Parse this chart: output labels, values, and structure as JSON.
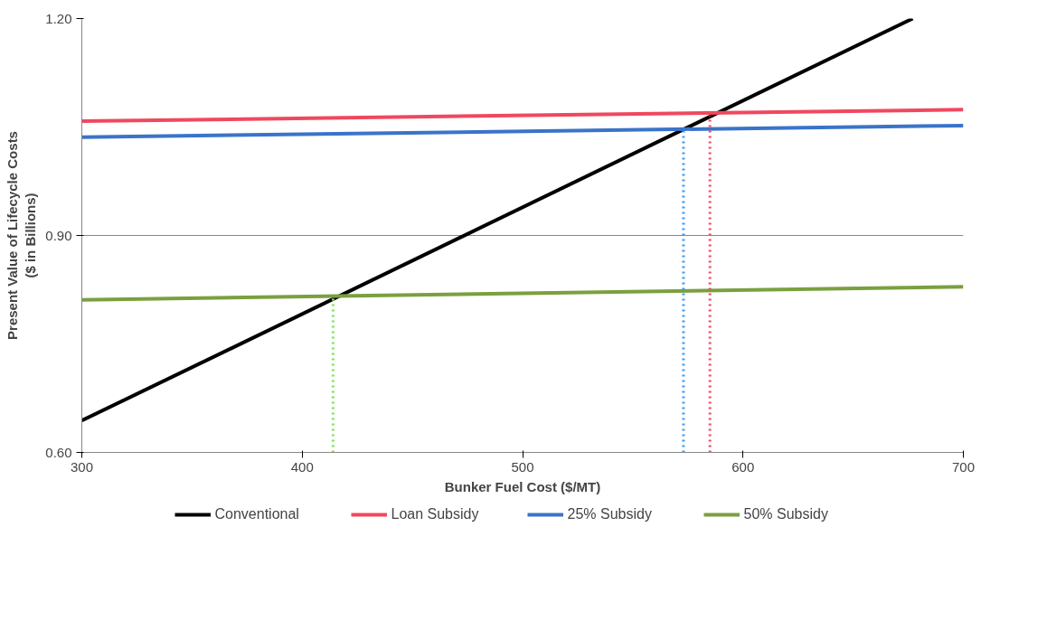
{
  "chart_data": {
    "type": "line",
    "xlabel": "Bunker Fuel Cost ($/MT)",
    "ylabel": "Present Value of Lifecycle Costs\n($ in Billions)",
    "xlim": [
      300,
      700
    ],
    "ylim": [
      0.6,
      1.2
    ],
    "xticks": [
      300,
      400,
      500,
      600,
      700
    ],
    "yticks": [
      {
        "value": 0.6,
        "label": "0.60"
      },
      {
        "value": 0.9,
        "label": "0.90"
      },
      {
        "value": 1.2,
        "label": "1.20"
      }
    ],
    "grid": "y",
    "legend": "bottom",
    "line_style": "solid",
    "marker": "none",
    "series": [
      {
        "name": "Conventional",
        "color": "#000000",
        "x": [
          300,
          677
        ],
        "values": [
          0.644,
          1.2
        ]
      },
      {
        "name": "Loan Subsidy",
        "color": "#f0485f",
        "x": [
          300,
          700
        ],
        "values": [
          1.058,
          1.074
        ]
      },
      {
        "name": "25% Subsidy",
        "color": "#3a74c9",
        "x": [
          300,
          700
        ],
        "values": [
          1.036,
          1.052
        ]
      },
      {
        "name": "50% Subsidy",
        "color": "#7aa03f",
        "x": [
          300,
          700
        ],
        "values": [
          0.811,
          0.829
        ]
      },
      {
        "color": "#7ee05a",
        "x": [
          414,
          414
        ],
        "values": [
          0.6,
          0.815
        ],
        "line_style": "dotted"
      },
      {
        "color": "#3a9af0",
        "x": [
          573,
          573
        ],
        "values": [
          0.6,
          1.046
        ],
        "line_style": "dotted"
      },
      {
        "color": "#f0485f",
        "x": [
          585,
          585
        ],
        "values": [
          0.6,
          1.066
        ],
        "line_style": "dotted"
      }
    ]
  }
}
